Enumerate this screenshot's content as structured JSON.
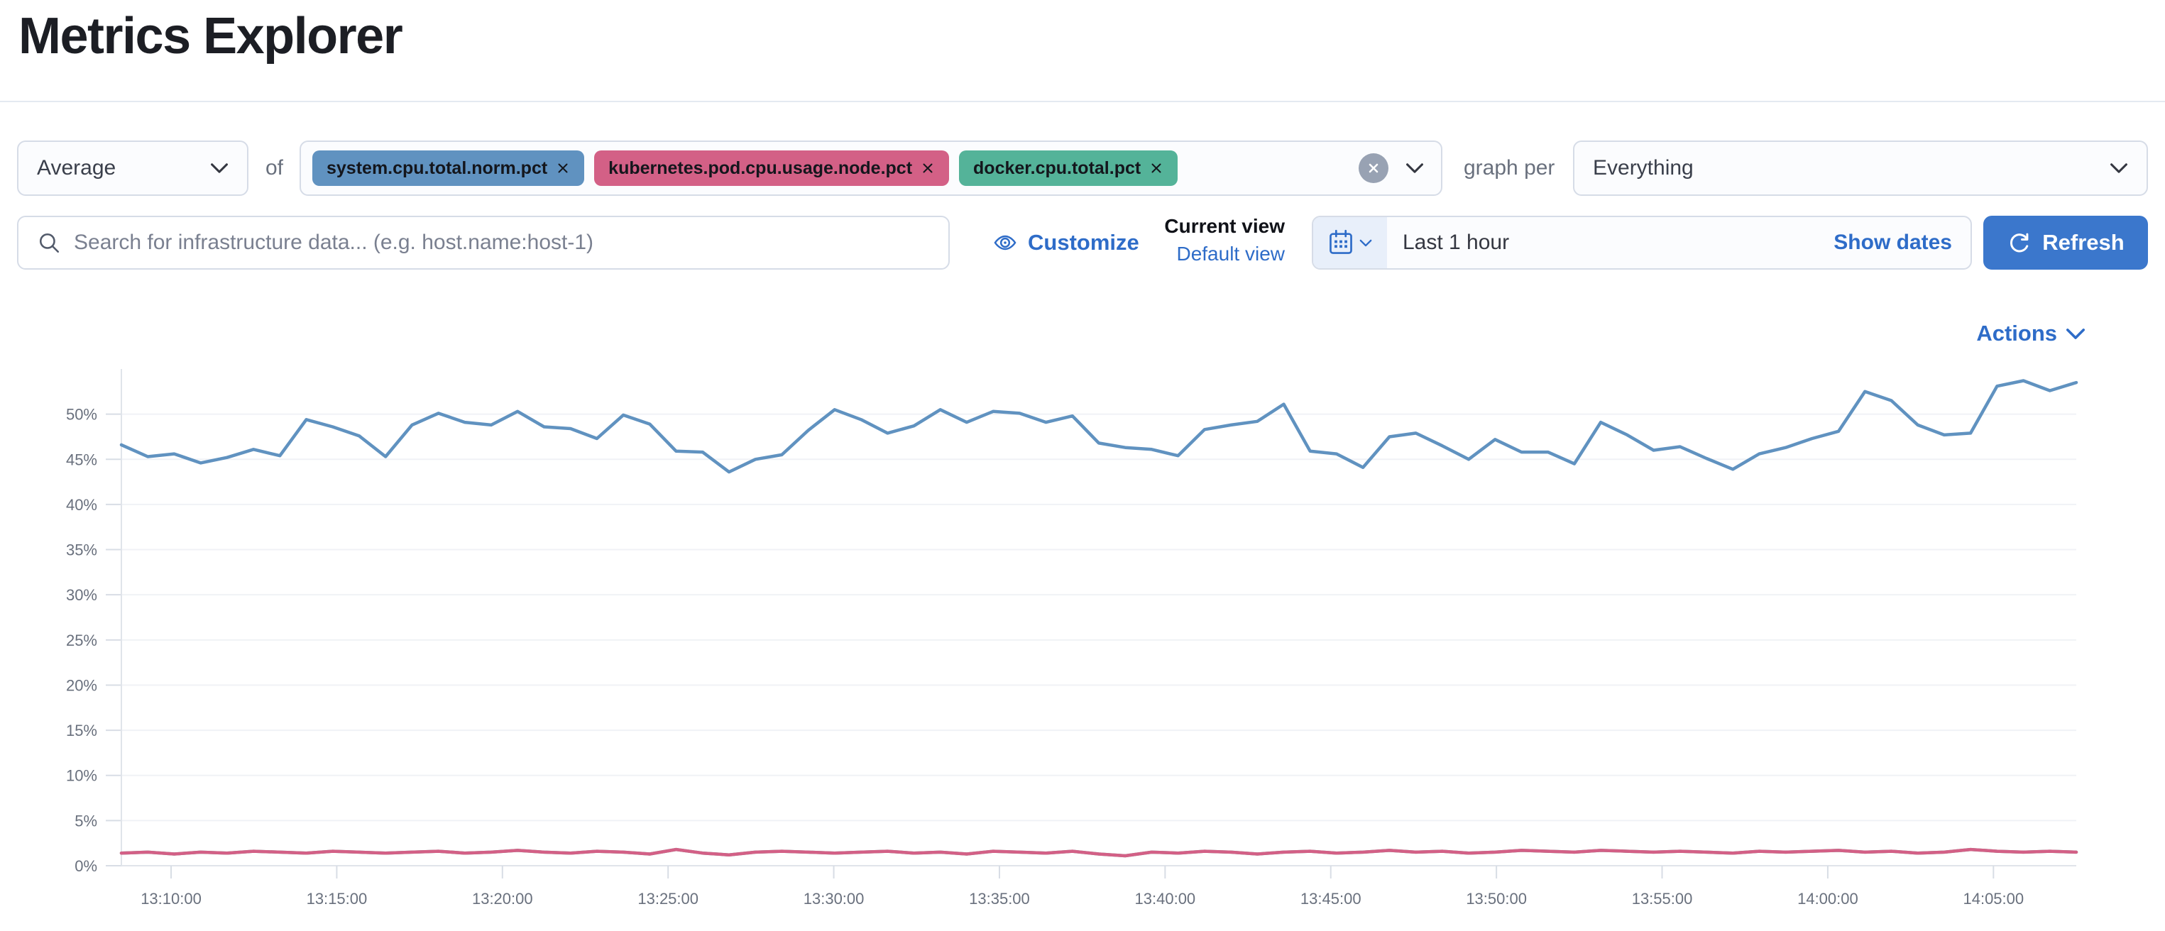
{
  "page": {
    "title": "Metrics Explorer"
  },
  "toolbar": {
    "aggregation": {
      "value": "Average"
    },
    "of_label": "of",
    "metrics": [
      {
        "label": "system.cpu.total.norm.pct",
        "color": "#6092C0"
      },
      {
        "label": "kubernetes.pod.cpu.usage.node.pct",
        "color": "#D36086"
      },
      {
        "label": "docker.cpu.total.pct",
        "color": "#54B399"
      }
    ],
    "graph_per_label": "graph per",
    "group_by": {
      "value": "Everything"
    }
  },
  "search": {
    "placeholder": "Search for infrastructure data... (e.g. host.name:host-1)"
  },
  "view_controls": {
    "customize_label": "Customize",
    "current_view_label": "Current view",
    "view_name": "Default view"
  },
  "time_picker": {
    "value": "Last 1 hour",
    "show_dates_label": "Show dates",
    "refresh_label": "Refresh"
  },
  "actions": {
    "label": "Actions"
  },
  "colors": {
    "link": "#2E6CC8",
    "primary_button": "#3B77CC",
    "axis_text": "#69707D",
    "gridline": "#F0F2F6",
    "axis_line": "#E0E4EA"
  },
  "chart_data": {
    "type": "line",
    "title": "",
    "xlabel": "",
    "ylabel": "",
    "ylim": [
      0,
      55
    ],
    "grid": true,
    "legend": "none",
    "x_start": "13:08:30",
    "x_end": "14:07:30",
    "x_ticks": [
      "13:10:00",
      "13:15:00",
      "13:20:00",
      "13:25:00",
      "13:30:00",
      "13:35:00",
      "13:40:00",
      "13:45:00",
      "13:50:00",
      "13:55:00",
      "14:00:00",
      "14:05:00"
    ],
    "y_ticks": [
      "0%",
      "5%",
      "10%",
      "15%",
      "20%",
      "25%",
      "30%",
      "35%",
      "40%",
      "45%",
      "50%"
    ],
    "series": [
      {
        "name": "system.cpu.total.norm.pct",
        "color": "#6092C0",
        "values": [
          46.6,
          45.3,
          45.6,
          44.6,
          45.2,
          46.1,
          45.4,
          49.4,
          48.6,
          47.6,
          45.3,
          48.8,
          50.1,
          49.1,
          48.8,
          50.3,
          48.6,
          48.4,
          47.3,
          49.9,
          48.9,
          45.9,
          45.8,
          43.6,
          45.0,
          45.5,
          48.2,
          50.5,
          49.4,
          47.9,
          48.7,
          50.5,
          49.1,
          50.3,
          50.1,
          49.1,
          49.8,
          46.8,
          46.3,
          46.1,
          45.4,
          48.3,
          48.8,
          49.2,
          51.1,
          45.9,
          45.6,
          44.1,
          47.5,
          47.9,
          46.5,
          45.0,
          47.2,
          45.8,
          45.8,
          44.5,
          49.1,
          47.7,
          46.0,
          46.4,
          45.1,
          43.9,
          45.6,
          46.3,
          47.3,
          48.1,
          52.5,
          51.5,
          48.8,
          47.7,
          47.9,
          53.1,
          53.7,
          52.6,
          53.5
        ]
      },
      {
        "name": "docker.cpu.total.pct",
        "color": "#54B399",
        "values": [
          1.4,
          1.5,
          1.3,
          1.5,
          1.4,
          1.6,
          1.5,
          1.4,
          1.6,
          1.5,
          1.4,
          1.5,
          1.6,
          1.4,
          1.5,
          1.7,
          1.5,
          1.4,
          1.6,
          1.5,
          1.3,
          1.8,
          1.4,
          1.2,
          1.5,
          1.6,
          1.5,
          1.4,
          1.5,
          1.6,
          1.4,
          1.5,
          1.3,
          1.6,
          1.5,
          1.4,
          1.6,
          1.3,
          1.1,
          1.5,
          1.4,
          1.6,
          1.5,
          1.3,
          1.5,
          1.6,
          1.4,
          1.5,
          1.7,
          1.5,
          1.6,
          1.4,
          1.5,
          1.7,
          1.6,
          1.5,
          1.7,
          1.6,
          1.5,
          1.6,
          1.5,
          1.4,
          1.6,
          1.5,
          1.6,
          1.7,
          1.5,
          1.6,
          1.4,
          1.5,
          1.8,
          1.6,
          1.5,
          1.6,
          1.5
        ]
      },
      {
        "name": "kubernetes.pod.cpu.usage.node.pct",
        "color": "#D36086",
        "values": [
          1.4,
          1.5,
          1.3,
          1.5,
          1.4,
          1.6,
          1.5,
          1.4,
          1.6,
          1.5,
          1.4,
          1.5,
          1.6,
          1.4,
          1.5,
          1.7,
          1.5,
          1.4,
          1.6,
          1.5,
          1.3,
          1.8,
          1.4,
          1.2,
          1.5,
          1.6,
          1.5,
          1.4,
          1.5,
          1.6,
          1.4,
          1.5,
          1.3,
          1.6,
          1.5,
          1.4,
          1.6,
          1.3,
          1.1,
          1.5,
          1.4,
          1.6,
          1.5,
          1.3,
          1.5,
          1.6,
          1.4,
          1.5,
          1.7,
          1.5,
          1.6,
          1.4,
          1.5,
          1.7,
          1.6,
          1.5,
          1.7,
          1.6,
          1.5,
          1.6,
          1.5,
          1.4,
          1.6,
          1.5,
          1.6,
          1.7,
          1.5,
          1.6,
          1.4,
          1.5,
          1.8,
          1.6,
          1.5,
          1.6,
          1.5
        ]
      }
    ]
  }
}
